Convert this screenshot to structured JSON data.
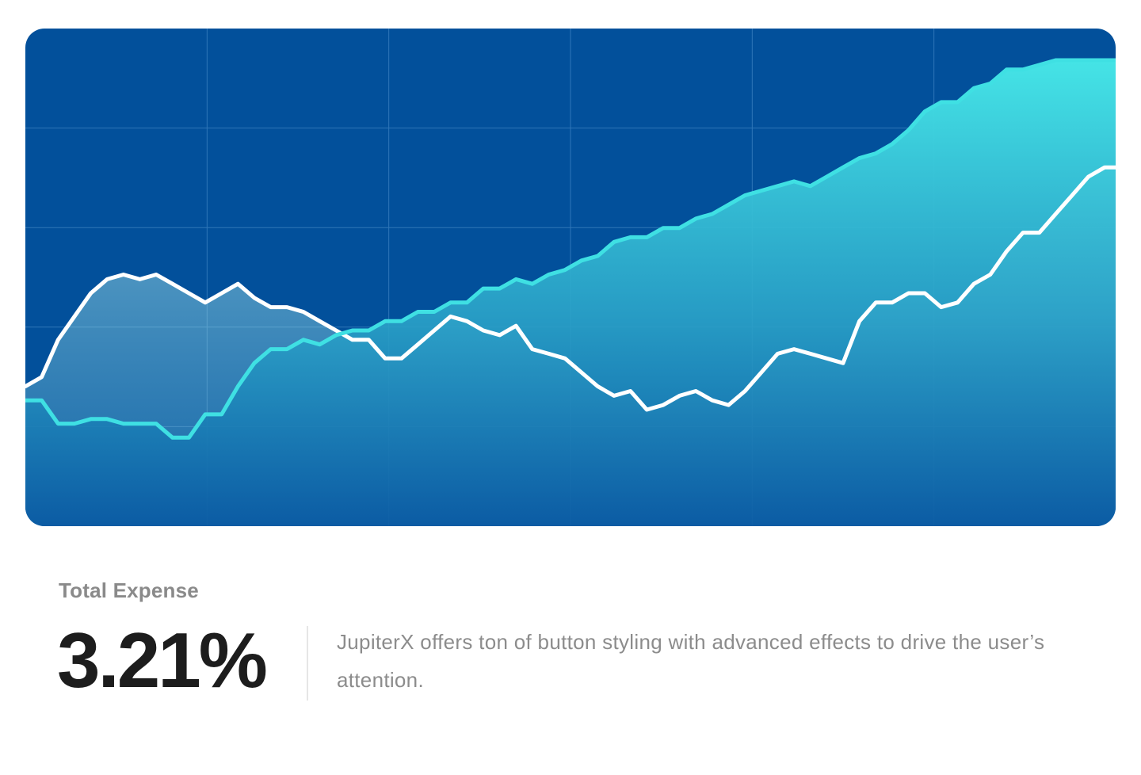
{
  "chart_data": {
    "type": "area",
    "title": "",
    "xlabel": "",
    "ylabel": "",
    "grid": true,
    "xlim": [
      0,
      100
    ],
    "ylim": [
      0,
      100
    ],
    "x": [
      0,
      1.5,
      3,
      4.5,
      6,
      7.5,
      9,
      10.5,
      12,
      13.5,
      15,
      16.5,
      18,
      19.5,
      21,
      22.5,
      24,
      25.5,
      27,
      28.5,
      30,
      31.5,
      33,
      34.5,
      36,
      37.5,
      39,
      40.5,
      42,
      43.5,
      45,
      46.5,
      48,
      49.5,
      51,
      52.5,
      54,
      55.5,
      57,
      58.5,
      60,
      61.5,
      63,
      64.5,
      66,
      67.5,
      69,
      70.5,
      72,
      73.5,
      75,
      76.5,
      78,
      79.5,
      81,
      82.5,
      84,
      85.5,
      87,
      88.5,
      90,
      91.5,
      93,
      94.5,
      96,
      97.5,
      99,
      100
    ],
    "series": [
      {
        "color": "#ffffff",
        "values": [
          30,
          32,
          40,
          45,
          50,
          53,
          54,
          53,
          54,
          52,
          50,
          48,
          50,
          52,
          49,
          47,
          47,
          46,
          44,
          42,
          40,
          40,
          36,
          36,
          39,
          42,
          45,
          44,
          42,
          41,
          43,
          38,
          37,
          36,
          33,
          30,
          28,
          29,
          25,
          26,
          28,
          29,
          27,
          26,
          29,
          33,
          37,
          38,
          37,
          36,
          35,
          44,
          48,
          48,
          50,
          50,
          47,
          48,
          52,
          54,
          59,
          63,
          63,
          67,
          71,
          75,
          77,
          77
        ]
      },
      {
        "color": "#3fe0e3",
        "values": [
          27,
          27,
          22,
          22,
          23,
          23,
          22,
          22,
          22,
          19,
          19,
          24,
          24,
          30,
          35,
          38,
          38,
          40,
          39,
          41,
          42,
          42,
          44,
          44,
          46,
          46,
          48,
          48,
          51,
          51,
          53,
          52,
          54,
          55,
          57,
          58,
          61,
          62,
          62,
          64,
          64,
          66,
          67,
          69,
          71,
          72,
          73,
          74,
          73,
          75,
          77,
          79,
          80,
          82,
          85,
          89,
          91,
          91,
          94,
          95,
          98,
          98,
          99,
          100,
          100,
          100,
          100,
          100
        ]
      }
    ]
  },
  "stat": {
    "label": "Total Expense",
    "value": "3.21%",
    "description": "JupiterX offers ton of button styling with advanced effects to drive the user’s attention."
  },
  "colors": {
    "card_background": "#02509b",
    "grid": "#2f76b8",
    "line_white": "#ffffff",
    "line_cyan": "#3fe0e3",
    "area_top": "#3fe0e3",
    "area_bottom": "#0a5aa3"
  }
}
